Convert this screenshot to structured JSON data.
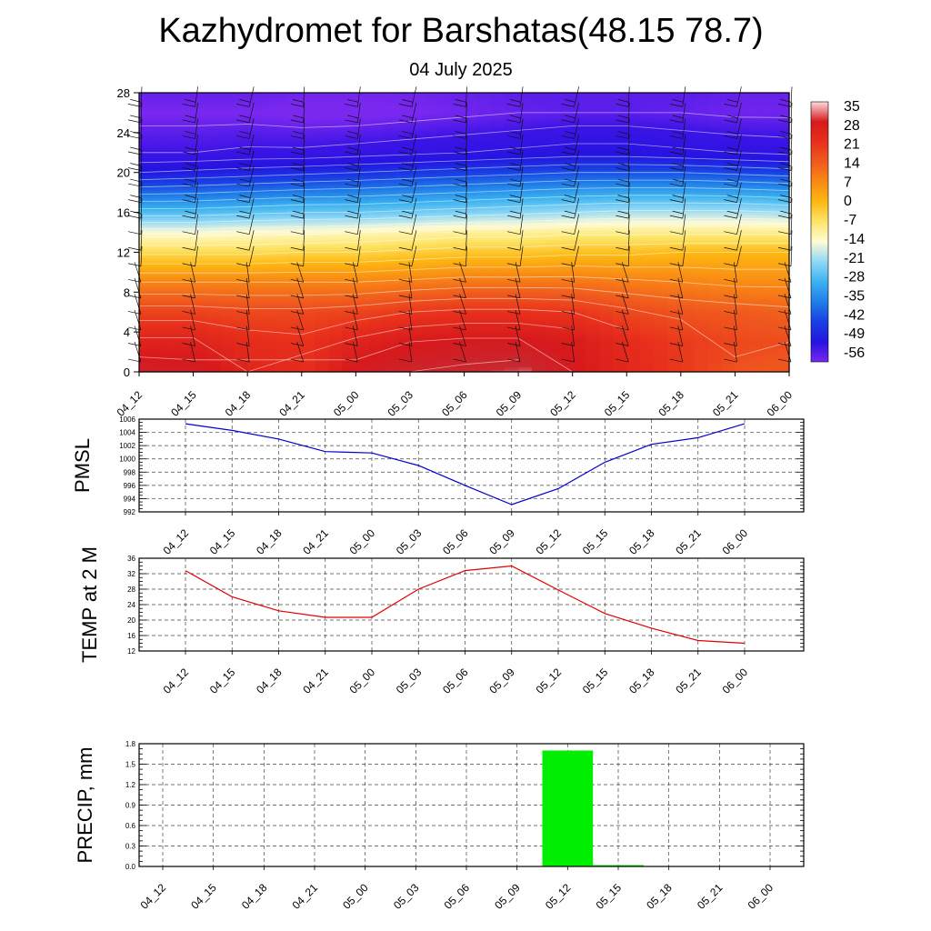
{
  "title": "Kazhydromet for Barshatas(48.15 78.7)",
  "subtitle": "04 July 2025",
  "time_labels": [
    "04_12",
    "04_15",
    "04_18",
    "04_21",
    "05_00",
    "05_03",
    "05_06",
    "05_09",
    "05_12",
    "05_15",
    "05_18",
    "05_21",
    "06_00"
  ],
  "chart_data": [
    {
      "type": "heatmap",
      "name": "temperature-cross-section",
      "y_ticks": [
        0,
        4,
        8,
        12,
        16,
        20,
        24,
        28
      ],
      "ylim": [
        0,
        28
      ],
      "colorbar_labels": [
        "35",
        "28",
        "21",
        "14",
        "7",
        "0",
        "-7",
        "-14",
        "-21",
        "-28",
        "-35",
        "-42",
        "-49",
        "-56"
      ],
      "colorbar_colors": [
        "#fbdadd",
        "#d7191c",
        "#e8301c",
        "#f05a1e",
        "#f98a14",
        "#fdb813",
        "#fde66a",
        "#fffbd6",
        "#8fd8f5",
        "#3cb2f0",
        "#1f7ee8",
        "#1840e4",
        "#2414e0",
        "#7a28ef"
      ],
      "layers": [
        {
          "alt": 0,
          "temp": [
            31,
            30,
            24,
            22,
            30,
            32,
            33,
            34,
            28,
            23,
            19,
            15,
            14
          ]
        },
        {
          "alt": 3,
          "temp": [
            25,
            25,
            22,
            21,
            25,
            28,
            29,
            29,
            27,
            22,
            19,
            17,
            16
          ]
        },
        {
          "alt": 6,
          "temp": [
            18,
            18,
            17,
            17,
            18,
            20,
            21,
            21,
            20,
            17,
            15,
            14,
            13
          ]
        },
        {
          "alt": 9,
          "temp": [
            8,
            8,
            8,
            8,
            8,
            9,
            10,
            10,
            10,
            9,
            8,
            7,
            7
          ]
        },
        {
          "alt": 12,
          "temp": [
            -5,
            -5,
            -5,
            -4,
            -4,
            -3,
            -2,
            -2,
            -1,
            -1,
            0,
            0,
            0
          ]
        },
        {
          "alt": 14,
          "temp": [
            -14,
            -14,
            -13,
            -13,
            -12,
            -11,
            -10,
            -10,
            -9,
            -9,
            -9,
            -9,
            -9
          ]
        },
        {
          "alt": 16,
          "temp": [
            -26,
            -26,
            -25,
            -24,
            -24,
            -23,
            -22,
            -21,
            -20,
            -19,
            -19,
            -19,
            -20
          ]
        },
        {
          "alt": 20,
          "temp": [
            -48,
            -47,
            -46,
            -45,
            -44,
            -43,
            -42,
            -41,
            -40,
            -40,
            -40,
            -41,
            -42
          ]
        },
        {
          "alt": 22,
          "temp": [
            -56,
            -56,
            -55,
            -55,
            -54,
            -53,
            -52,
            -51,
            -50,
            -50,
            -51,
            -52,
            -53
          ]
        },
        {
          "alt": 26,
          "temp": [
            -62,
            -62,
            -62,
            -63,
            -63,
            -62,
            -61,
            -60,
            -59,
            -59,
            -60,
            -61,
            -61
          ]
        },
        {
          "alt": 28,
          "temp": [
            -60,
            -60,
            -60,
            -61,
            -61,
            -61,
            -60,
            -59,
            -59,
            -59,
            -59,
            -60,
            -60
          ]
        }
      ]
    },
    {
      "type": "line",
      "ylabel": "PMSL",
      "ylim": [
        992,
        1006
      ],
      "y_ticks": [
        992,
        994,
        996,
        998,
        1000,
        1002,
        1004,
        1006
      ],
      "values": [
        1005.3,
        1004.3,
        1003,
        1001.1,
        1000.9,
        999,
        996,
        993.1,
        995.5,
        999.5,
        1002.2,
        1003.2,
        1005.3
      ],
      "color": "#0000cc"
    },
    {
      "type": "line",
      "ylabel": "TEMP at 2 M",
      "ylim": [
        12,
        36
      ],
      "y_ticks": [
        12,
        16,
        20,
        24,
        28,
        32,
        36
      ],
      "values": [
        32.8,
        26,
        22.4,
        20.7,
        20.7,
        28,
        32.8,
        34,
        27.8,
        21.7,
        17.9,
        14.7,
        14
      ],
      "color": "#e00000"
    },
    {
      "type": "bar",
      "ylabel": "PRECIP, mm",
      "ylim": [
        0,
        1.8
      ],
      "y_ticks": [
        "0.0",
        "0.3",
        "0.6",
        "0.9",
        "1.2",
        "1.5",
        "1.8"
      ],
      "values": [
        0,
        0,
        0,
        0,
        0,
        0,
        0,
        0,
        1.7,
        0.02,
        0,
        0,
        0
      ],
      "color": "#00ee00"
    }
  ]
}
